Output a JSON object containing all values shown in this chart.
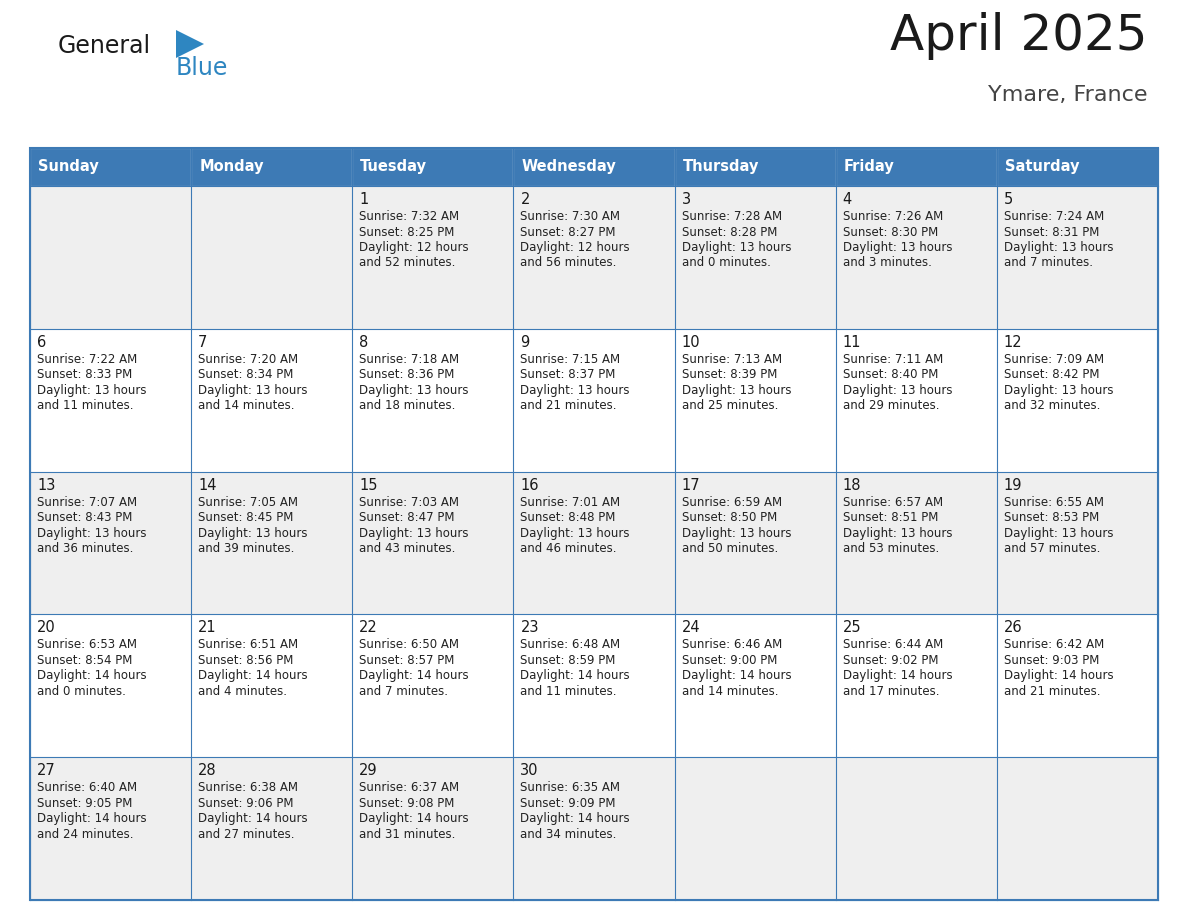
{
  "title": "April 2025",
  "subtitle": "Ymare, France",
  "header_color": "#3D7AB5",
  "header_text_color": "#FFFFFF",
  "cell_bg_light": "#EFEFEF",
  "cell_bg_white": "#FFFFFF",
  "border_color": "#3D7AB5",
  "days_of_week": [
    "Sunday",
    "Monday",
    "Tuesday",
    "Wednesday",
    "Thursday",
    "Friday",
    "Saturday"
  ],
  "title_color": "#1a1a1a",
  "subtitle_color": "#444444",
  "day_num_color": "#1a1a1a",
  "cell_text_color": "#222222",
  "logo_black": "#1a1a1a",
  "logo_blue": "#2E86C1",
  "weeks": [
    [
      {
        "day": "",
        "sunrise": "",
        "sunset": "",
        "daylight1": "",
        "daylight2": ""
      },
      {
        "day": "",
        "sunrise": "",
        "sunset": "",
        "daylight1": "",
        "daylight2": ""
      },
      {
        "day": "1",
        "sunrise": "Sunrise: 7:32 AM",
        "sunset": "Sunset: 8:25 PM",
        "daylight1": "Daylight: 12 hours",
        "daylight2": "and 52 minutes."
      },
      {
        "day": "2",
        "sunrise": "Sunrise: 7:30 AM",
        "sunset": "Sunset: 8:27 PM",
        "daylight1": "Daylight: 12 hours",
        "daylight2": "and 56 minutes."
      },
      {
        "day": "3",
        "sunrise": "Sunrise: 7:28 AM",
        "sunset": "Sunset: 8:28 PM",
        "daylight1": "Daylight: 13 hours",
        "daylight2": "and 0 minutes."
      },
      {
        "day": "4",
        "sunrise": "Sunrise: 7:26 AM",
        "sunset": "Sunset: 8:30 PM",
        "daylight1": "Daylight: 13 hours",
        "daylight2": "and 3 minutes."
      },
      {
        "day": "5",
        "sunrise": "Sunrise: 7:24 AM",
        "sunset": "Sunset: 8:31 PM",
        "daylight1": "Daylight: 13 hours",
        "daylight2": "and 7 minutes."
      }
    ],
    [
      {
        "day": "6",
        "sunrise": "Sunrise: 7:22 AM",
        "sunset": "Sunset: 8:33 PM",
        "daylight1": "Daylight: 13 hours",
        "daylight2": "and 11 minutes."
      },
      {
        "day": "7",
        "sunrise": "Sunrise: 7:20 AM",
        "sunset": "Sunset: 8:34 PM",
        "daylight1": "Daylight: 13 hours",
        "daylight2": "and 14 minutes."
      },
      {
        "day": "8",
        "sunrise": "Sunrise: 7:18 AM",
        "sunset": "Sunset: 8:36 PM",
        "daylight1": "Daylight: 13 hours",
        "daylight2": "and 18 minutes."
      },
      {
        "day": "9",
        "sunrise": "Sunrise: 7:15 AM",
        "sunset": "Sunset: 8:37 PM",
        "daylight1": "Daylight: 13 hours",
        "daylight2": "and 21 minutes."
      },
      {
        "day": "10",
        "sunrise": "Sunrise: 7:13 AM",
        "sunset": "Sunset: 8:39 PM",
        "daylight1": "Daylight: 13 hours",
        "daylight2": "and 25 minutes."
      },
      {
        "day": "11",
        "sunrise": "Sunrise: 7:11 AM",
        "sunset": "Sunset: 8:40 PM",
        "daylight1": "Daylight: 13 hours",
        "daylight2": "and 29 minutes."
      },
      {
        "day": "12",
        "sunrise": "Sunrise: 7:09 AM",
        "sunset": "Sunset: 8:42 PM",
        "daylight1": "Daylight: 13 hours",
        "daylight2": "and 32 minutes."
      }
    ],
    [
      {
        "day": "13",
        "sunrise": "Sunrise: 7:07 AM",
        "sunset": "Sunset: 8:43 PM",
        "daylight1": "Daylight: 13 hours",
        "daylight2": "and 36 minutes."
      },
      {
        "day": "14",
        "sunrise": "Sunrise: 7:05 AM",
        "sunset": "Sunset: 8:45 PM",
        "daylight1": "Daylight: 13 hours",
        "daylight2": "and 39 minutes."
      },
      {
        "day": "15",
        "sunrise": "Sunrise: 7:03 AM",
        "sunset": "Sunset: 8:47 PM",
        "daylight1": "Daylight: 13 hours",
        "daylight2": "and 43 minutes."
      },
      {
        "day": "16",
        "sunrise": "Sunrise: 7:01 AM",
        "sunset": "Sunset: 8:48 PM",
        "daylight1": "Daylight: 13 hours",
        "daylight2": "and 46 minutes."
      },
      {
        "day": "17",
        "sunrise": "Sunrise: 6:59 AM",
        "sunset": "Sunset: 8:50 PM",
        "daylight1": "Daylight: 13 hours",
        "daylight2": "and 50 minutes."
      },
      {
        "day": "18",
        "sunrise": "Sunrise: 6:57 AM",
        "sunset": "Sunset: 8:51 PM",
        "daylight1": "Daylight: 13 hours",
        "daylight2": "and 53 minutes."
      },
      {
        "day": "19",
        "sunrise": "Sunrise: 6:55 AM",
        "sunset": "Sunset: 8:53 PM",
        "daylight1": "Daylight: 13 hours",
        "daylight2": "and 57 minutes."
      }
    ],
    [
      {
        "day": "20",
        "sunrise": "Sunrise: 6:53 AM",
        "sunset": "Sunset: 8:54 PM",
        "daylight1": "Daylight: 14 hours",
        "daylight2": "and 0 minutes."
      },
      {
        "day": "21",
        "sunrise": "Sunrise: 6:51 AM",
        "sunset": "Sunset: 8:56 PM",
        "daylight1": "Daylight: 14 hours",
        "daylight2": "and 4 minutes."
      },
      {
        "day": "22",
        "sunrise": "Sunrise: 6:50 AM",
        "sunset": "Sunset: 8:57 PM",
        "daylight1": "Daylight: 14 hours",
        "daylight2": "and 7 minutes."
      },
      {
        "day": "23",
        "sunrise": "Sunrise: 6:48 AM",
        "sunset": "Sunset: 8:59 PM",
        "daylight1": "Daylight: 14 hours",
        "daylight2": "and 11 minutes."
      },
      {
        "day": "24",
        "sunrise": "Sunrise: 6:46 AM",
        "sunset": "Sunset: 9:00 PM",
        "daylight1": "Daylight: 14 hours",
        "daylight2": "and 14 minutes."
      },
      {
        "day": "25",
        "sunrise": "Sunrise: 6:44 AM",
        "sunset": "Sunset: 9:02 PM",
        "daylight1": "Daylight: 14 hours",
        "daylight2": "and 17 minutes."
      },
      {
        "day": "26",
        "sunrise": "Sunrise: 6:42 AM",
        "sunset": "Sunset: 9:03 PM",
        "daylight1": "Daylight: 14 hours",
        "daylight2": "and 21 minutes."
      }
    ],
    [
      {
        "day": "27",
        "sunrise": "Sunrise: 6:40 AM",
        "sunset": "Sunset: 9:05 PM",
        "daylight1": "Daylight: 14 hours",
        "daylight2": "and 24 minutes."
      },
      {
        "day": "28",
        "sunrise": "Sunrise: 6:38 AM",
        "sunset": "Sunset: 9:06 PM",
        "daylight1": "Daylight: 14 hours",
        "daylight2": "and 27 minutes."
      },
      {
        "day": "29",
        "sunrise": "Sunrise: 6:37 AM",
        "sunset": "Sunset: 9:08 PM",
        "daylight1": "Daylight: 14 hours",
        "daylight2": "and 31 minutes."
      },
      {
        "day": "30",
        "sunrise": "Sunrise: 6:35 AM",
        "sunset": "Sunset: 9:09 PM",
        "daylight1": "Daylight: 14 hours",
        "daylight2": "and 34 minutes."
      },
      {
        "day": "",
        "sunrise": "",
        "sunset": "",
        "daylight1": "",
        "daylight2": ""
      },
      {
        "day": "",
        "sunrise": "",
        "sunset": "",
        "daylight1": "",
        "daylight2": ""
      },
      {
        "day": "",
        "sunrise": "",
        "sunset": "",
        "daylight1": "",
        "daylight2": ""
      }
    ]
  ]
}
